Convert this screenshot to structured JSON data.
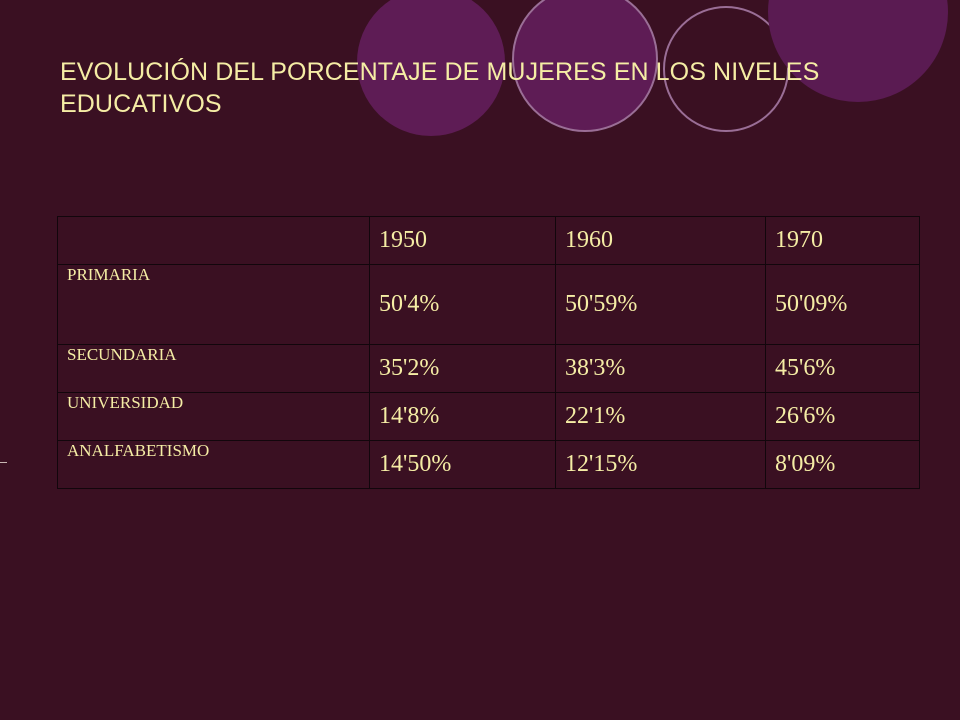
{
  "slide": {
    "title": "EVOLUCIÓN DEL PORCENTAJE DE MUJERES EN LOS NIVELES EDUCATIVOS"
  },
  "table": {
    "corner": "",
    "headers": [
      "1950",
      "1960",
      "1970"
    ],
    "rows": [
      {
        "label": "PRIMARIA",
        "values": [
          "50'4%",
          "50'59%",
          "50'09%"
        ]
      },
      {
        "label": "SECUNDARIA",
        "values": [
          "35'2%",
          "38'3%",
          "45'6%"
        ]
      },
      {
        "label": "UNIVERSIDAD",
        "values": [
          "14'8%",
          "22'1%",
          "26'6%"
        ]
      },
      {
        "label": "ANALFABETISMO",
        "values": [
          "14'50%",
          "12'15%",
          "8'09%"
        ]
      }
    ]
  },
  "colors": {
    "background": "#3a1022",
    "text": "#f5eda5",
    "circle_fill": "#5e1c55",
    "circle_ring": "#9a6e96",
    "table_border": "#12060c"
  }
}
